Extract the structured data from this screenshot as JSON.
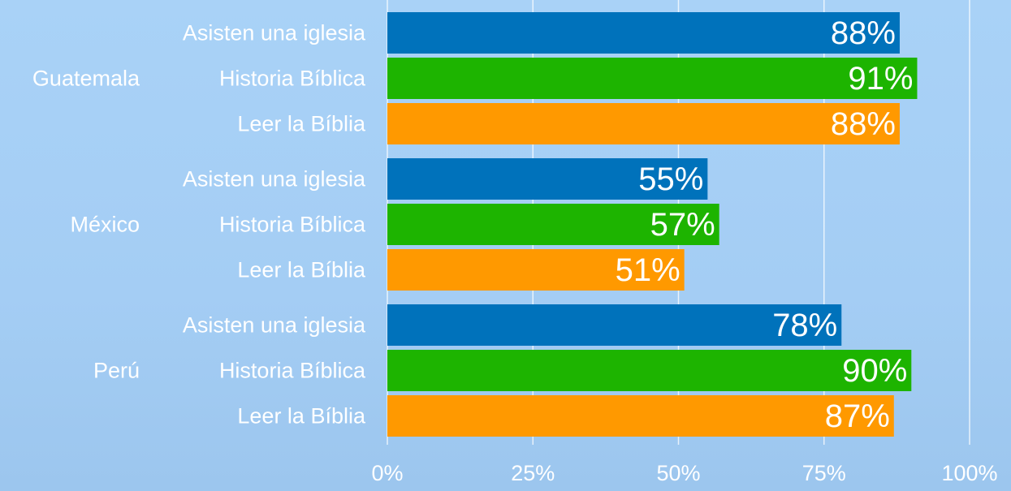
{
  "chart_data": {
    "type": "bar",
    "orientation": "horizontal",
    "categories": [
      "Guatemala",
      "México",
      "Perú"
    ],
    "series": [
      {
        "name": "Asisten una iglesia",
        "color": "#0072bb",
        "values": [
          88,
          55,
          78
        ],
        "value_labels": [
          "88%",
          "55%",
          "78%"
        ]
      },
      {
        "name": "Historia Bíblica",
        "color": "#1db400",
        "values": [
          91,
          57,
          90
        ],
        "value_labels": [
          "91%",
          "57%",
          "90%"
        ]
      },
      {
        "name": "Leer la Bíblia",
        "color": "#ff9900",
        "values": [
          88,
          51,
          87
        ],
        "value_labels": [
          "88%",
          "51%",
          "87%"
        ]
      }
    ],
    "xlim": [
      0,
      100
    ],
    "xticks": [
      {
        "value": 0,
        "label": "0%"
      },
      {
        "value": 25,
        "label": "25%"
      },
      {
        "value": 50,
        "label": "50%"
      },
      {
        "value": 75,
        "label": "75%"
      },
      {
        "value": 100,
        "label": "100%"
      }
    ],
    "grid": true
  }
}
